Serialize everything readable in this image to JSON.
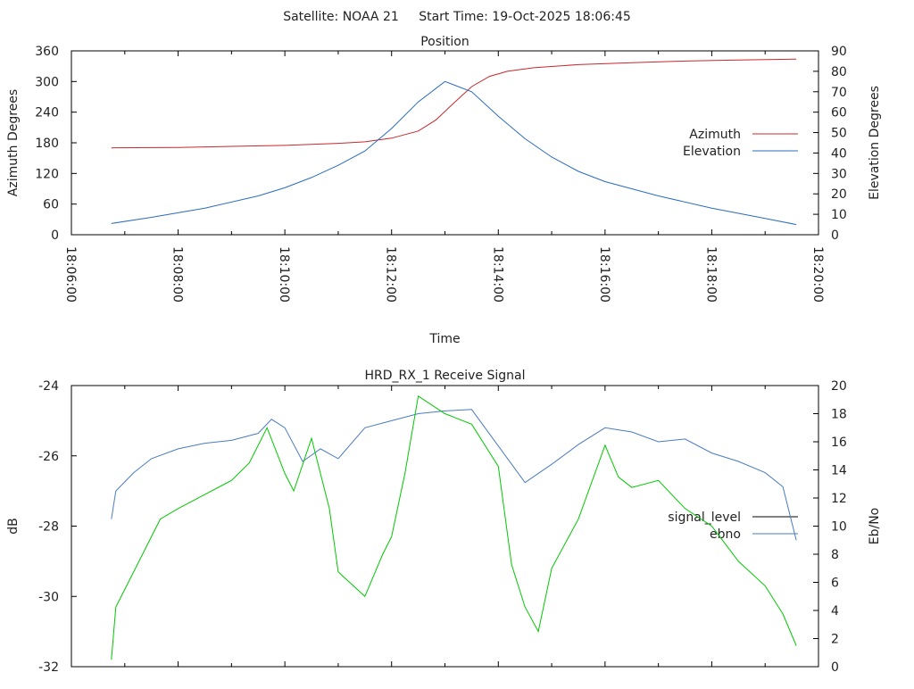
{
  "header": {
    "satellite_label": "Satellite: NOAA 21",
    "start_time_label": "Start Time: 19-Oct-2025 18:06:45"
  },
  "chart_data": [
    {
      "type": "line",
      "title": "Position",
      "xlabel": "Time",
      "ylabel": "Azimuth Degrees",
      "y2label": "Elevation Degrees",
      "xlim": [
        "18:06:00",
        "18:20:00"
      ],
      "xticks": [
        "18:06:00",
        "18:08:00",
        "18:10:00",
        "18:12:00",
        "18:14:00",
        "18:16:00",
        "18:18:00",
        "18:20:00"
      ],
      "ylim": [
        0,
        360
      ],
      "yticks": [
        "0",
        "60",
        "120",
        "180",
        "240",
        "300",
        "360"
      ],
      "y2lim": [
        0,
        90
      ],
      "y2ticks": [
        "0",
        "10",
        "20",
        "30",
        "40",
        "50",
        "60",
        "70",
        "80",
        "90"
      ],
      "legend_position": "right",
      "series": [
        {
          "name": "Azimuth",
          "axis": "y",
          "color": "#c8282d",
          "x": [
            "18:06:45",
            "18:08:00",
            "18:09:00",
            "18:10:00",
            "18:11:00",
            "18:11:30",
            "18:12:00",
            "18:12:30",
            "18:12:50",
            "18:13:10",
            "18:13:30",
            "18:13:50",
            "18:14:10",
            "18:14:40",
            "18:15:30",
            "18:16:30",
            "18:17:30",
            "18:18:30",
            "18:19:35"
          ],
          "values": [
            170,
            171,
            173,
            175,
            179,
            182,
            189,
            203,
            225,
            258,
            290,
            310,
            320,
            327,
            333,
            337,
            340,
            342,
            344
          ]
        },
        {
          "name": "Elevation",
          "axis": "y2",
          "color": "#2a6cc0",
          "x": [
            "18:06:45",
            "18:07:30",
            "18:08:30",
            "18:09:30",
            "18:10:00",
            "18:10:30",
            "18:11:00",
            "18:11:30",
            "18:12:00",
            "18:12:30",
            "18:13:00",
            "18:13:30",
            "18:14:00",
            "18:14:30",
            "18:15:00",
            "18:15:30",
            "18:16:00",
            "18:17:00",
            "18:18:00",
            "18:19:00",
            "18:19:35"
          ],
          "values": [
            5.5,
            8.5,
            13,
            19,
            23,
            28,
            34,
            41,
            52,
            65,
            75,
            70,
            58,
            47,
            38,
            31,
            26,
            19,
            13,
            8,
            5
          ]
        }
      ]
    },
    {
      "type": "line",
      "title": "HRD_RX_1 Receive Signal",
      "ylabel": "dB",
      "y2label": "Eb/No",
      "xlim": [
        "18:06:00",
        "18:20:00"
      ],
      "ylim": [
        -32,
        -24
      ],
      "yticks": [
        "-32",
        "-30",
        "-28",
        "-26",
        "-24"
      ],
      "y2lim": [
        0,
        20
      ],
      "y2ticks": [
        "0",
        "2",
        "4",
        "6",
        "8",
        "10",
        "12",
        "14",
        "16",
        "18",
        "20"
      ],
      "legend_position": "right",
      "series": [
        {
          "name": "signal_level",
          "axis": "y",
          "color": "#000000",
          "x": [],
          "values": []
        },
        {
          "name": "ebno",
          "axis": "y2",
          "color": "#4a7cc0",
          "x": [
            "18:06:45",
            "18:06:50",
            "18:07:10",
            "18:07:30",
            "18:08:00",
            "18:08:30",
            "18:09:00",
            "18:09:30",
            "18:09:45",
            "18:10:00",
            "18:10:20",
            "18:10:40",
            "18:11:00",
            "18:11:30",
            "18:12:00",
            "18:12:30",
            "18:13:00",
            "18:13:30",
            "18:14:00",
            "18:14:30",
            "18:15:00",
            "18:15:30",
            "18:16:00",
            "18:16:30",
            "18:17:00",
            "18:17:30",
            "18:18:00",
            "18:18:30",
            "18:19:00",
            "18:19:20",
            "18:19:35"
          ],
          "values": [
            10.5,
            12.5,
            13.8,
            14.8,
            15.5,
            15.9,
            16.1,
            16.6,
            17.6,
            17,
            14.6,
            15.5,
            14.8,
            17,
            17.5,
            18,
            18.2,
            18.3,
            15.7,
            13.1,
            14.4,
            15.8,
            17,
            16.7,
            16,
            16.2,
            15.2,
            14.6,
            13.8,
            12.8,
            9
          ]
        },
        {
          "name": "",
          "axis": "y",
          "color": "#00c800",
          "x": [
            "18:06:45",
            "18:06:50",
            "18:07:00",
            "18:07:20",
            "18:07:40",
            "18:08:00",
            "18:08:30",
            "18:09:00",
            "18:09:20",
            "18:09:40",
            "18:10:00",
            "18:10:10",
            "18:10:30",
            "18:10:50",
            "18:11:00",
            "18:11:30",
            "18:11:50",
            "18:12:00",
            "18:12:15",
            "18:12:30",
            "18:13:00",
            "18:13:30",
            "18:14:00",
            "18:14:15",
            "18:14:30",
            "18:14:45",
            "18:15:00",
            "18:15:30",
            "18:16:00",
            "18:16:15",
            "18:16:30",
            "18:17:00",
            "18:17:30",
            "18:18:00",
            "18:18:30",
            "18:19:00",
            "18:19:20",
            "18:19:35"
          ],
          "values": [
            -31.8,
            -30.3,
            -29.8,
            -28.8,
            -27.8,
            -27.5,
            -27.1,
            -26.7,
            -26.2,
            -25.2,
            -26.5,
            -27,
            -25.5,
            -27.5,
            -29.3,
            -30,
            -28.8,
            -28.3,
            -26.5,
            -24.3,
            -24.8,
            -25.1,
            -26.3,
            -29.1,
            -30.3,
            -31,
            -29.2,
            -27.8,
            -25.7,
            -26.6,
            -26.9,
            -26.7,
            -27.5,
            -28,
            -29,
            -29.7,
            -30.5,
            -31.4
          ]
        }
      ]
    }
  ]
}
